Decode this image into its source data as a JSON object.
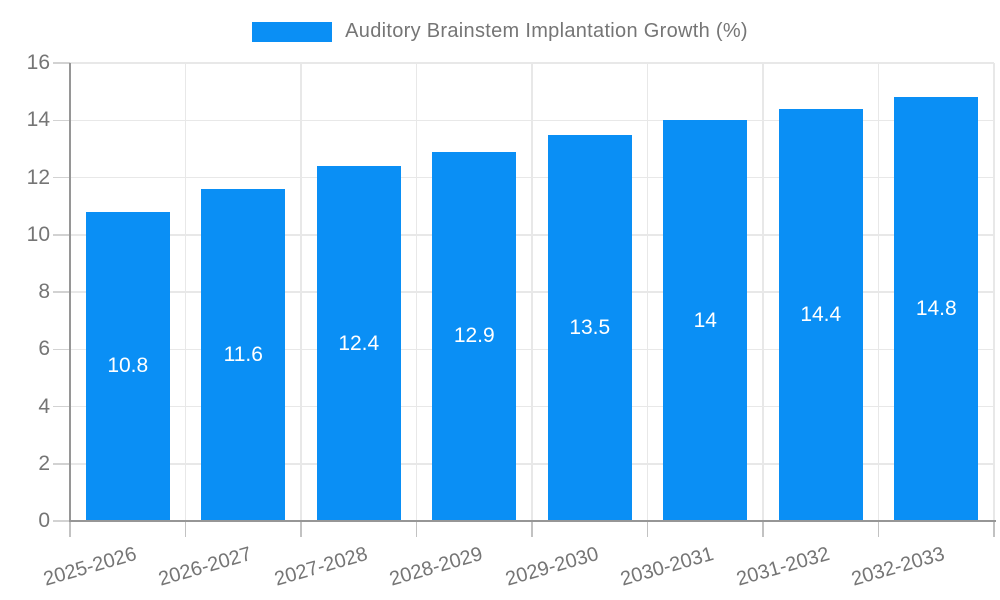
{
  "chart_data": {
    "type": "bar",
    "title": "Auditory Brainstem Implantation Growth (%)",
    "legend": {
      "label": "Auditory Brainstem Implantation Growth (%)",
      "position": "top"
    },
    "categories": [
      "2025-2026",
      "2026-2027",
      "2027-2028",
      "2028-2029",
      "2029-2030",
      "2030-2031",
      "2031-2032",
      "2032-2033"
    ],
    "values": [
      10.8,
      11.6,
      12.4,
      12.9,
      13.5,
      14,
      14.4,
      14.8
    ],
    "value_labels": [
      "10.8",
      "11.6",
      "12.4",
      "12.9",
      "13.5",
      "14",
      "14.4",
      "14.8"
    ],
    "xlabel": "",
    "ylabel": "",
    "ylim": [
      0,
      16
    ],
    "yticks": [
      0,
      2,
      4,
      6,
      8,
      10,
      12,
      14,
      16
    ],
    "grid": true,
    "x_label_rotation_deg": -16,
    "colors": {
      "bar": "#0a8ff5",
      "text": "#757575",
      "axis": "#969696",
      "gridline": "#e8e8e8",
      "value_label": "#ffffff",
      "background": "#ffffff"
    }
  }
}
